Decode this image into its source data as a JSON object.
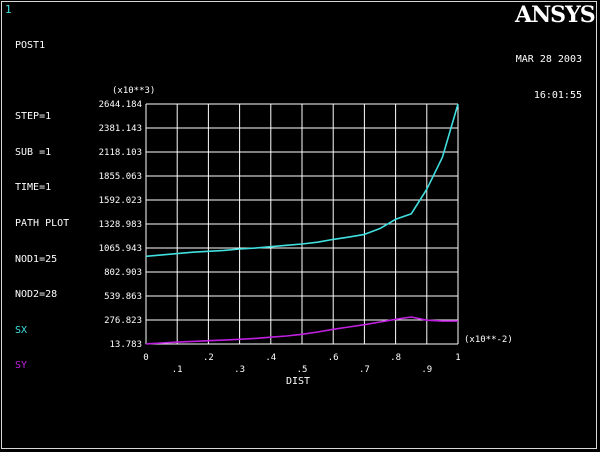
{
  "window_number": "1",
  "info": {
    "lines": [
      "POST1",
      "",
      "STEP=1",
      "SUB =1",
      "TIME=1",
      "PATH PLOT",
      "NOD1=25",
      "NOD2=28"
    ],
    "legend": [
      {
        "label": "SX",
        "color": "#40e0e0"
      },
      {
        "label": "SY",
        "color": "#c020e0"
      }
    ]
  },
  "logo": "ANSYS",
  "date": "MAR 28 2003",
  "time": "16:01:55",
  "chart_data": {
    "type": "line",
    "xlabel": "DIST",
    "x_multiplier": "(x10**-2)",
    "y_multiplier": "(x10**3)",
    "xlim": [
      0,
      1
    ],
    "ylim": [
      13.783,
      2644.184
    ],
    "x_ticks": [
      "0",
      ".1",
      ".2",
      ".3",
      ".4",
      ".5",
      ".6",
      ".7",
      ".8",
      ".9",
      "1"
    ],
    "y_ticks": [
      "13.783",
      "276.823",
      "539.863",
      "802.903",
      "1065.943",
      "1328.983",
      "1592.023",
      "1855.063",
      "2118.103",
      "2381.143",
      "2644.184"
    ],
    "grid": true,
    "series": [
      {
        "name": "SX",
        "color": "#40e0e0",
        "x": [
          0,
          0.05,
          0.1,
          0.15,
          0.2,
          0.25,
          0.3,
          0.35,
          0.4,
          0.45,
          0.5,
          0.55,
          0.6,
          0.65,
          0.7,
          0.75,
          0.8,
          0.85,
          0.9,
          0.95,
          1.0
        ],
        "y": [
          975,
          990,
          1005,
          1020,
          1030,
          1040,
          1055,
          1065,
          1080,
          1095,
          1110,
          1130,
          1160,
          1185,
          1215,
          1280,
          1380,
          1440,
          1710,
          2060,
          2644
        ]
      },
      {
        "name": "SY",
        "color": "#c020e0",
        "x": [
          0,
          0.05,
          0.1,
          0.15,
          0.2,
          0.25,
          0.3,
          0.35,
          0.4,
          0.45,
          0.5,
          0.55,
          0.6,
          0.65,
          0.7,
          0.75,
          0.8,
          0.85,
          0.9,
          0.95,
          1.0
        ],
        "y": [
          15,
          25,
          35,
          42,
          50,
          57,
          65,
          75,
          88,
          102,
          120,
          145,
          175,
          200,
          225,
          255,
          285,
          310,
          275,
          265,
          265
        ]
      }
    ]
  }
}
